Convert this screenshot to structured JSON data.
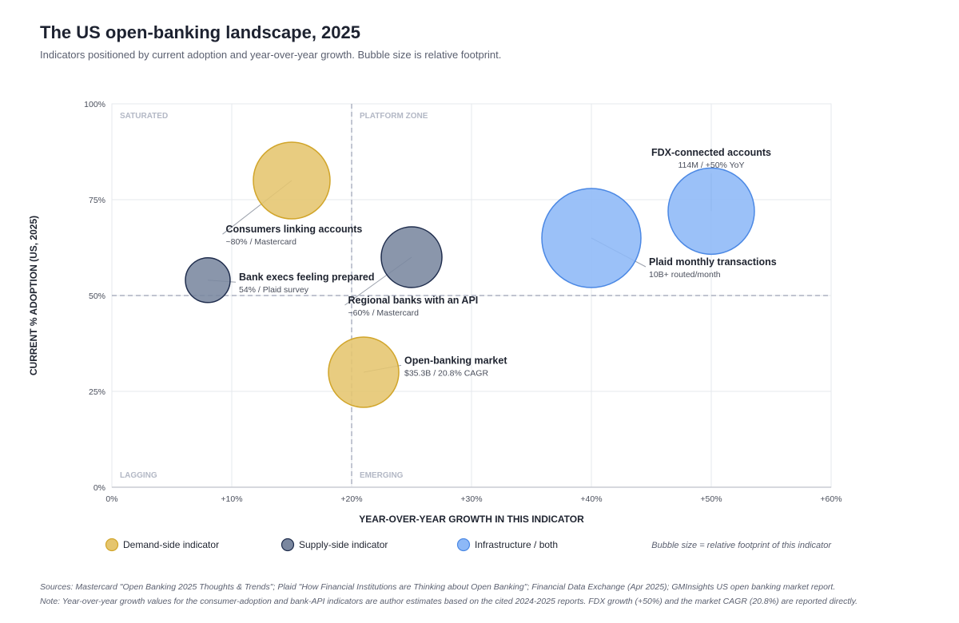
{
  "page": {
    "title": "The US open-banking landscape, 2025",
    "subtitle": "Indicators positioned by current adoption and year-over-year growth. Bubble size is relative footprint.",
    "sources": "Sources: Mastercard \"Open Banking 2025 Thoughts & Trends\"; Plaid \"How Financial Institutions are Thinking about Open Banking\"; Financial Data Exchange (Apr 2025); GMInsights US open banking market report.",
    "note": "Note: Year-over-year growth values for the consumer-adoption and bank-API indicators are author estimates based on the cited 2024-2025 reports. FDX growth (+50%) and the market CAGR (20.8%) are reported directly."
  },
  "colors": {
    "demand_fill": "#e5c56e",
    "demand_stroke": "#d1a52a",
    "supply_fill": "#7a879f",
    "supply_stroke": "#1f2d4d",
    "infra_fill": "#8db8f7",
    "infra_stroke": "#4b88e4",
    "grid": "#e6e8ec",
    "axis": "#c9ccd4",
    "divider": "#9aa1b3",
    "quadrant_label": "#b3b8c5"
  },
  "chart_data": {
    "type": "scatter",
    "xlabel": "YEAR-OVER-YEAR GROWTH IN THIS INDICATOR",
    "ylabel": "CURRENT % ADOPTION (US, 2025)",
    "xlim": [
      0,
      60
    ],
    "ylim": [
      0,
      100
    ],
    "x_ticks": [
      0,
      10,
      20,
      30,
      40,
      50,
      60
    ],
    "x_tick_labels": [
      "0%",
      "+10%",
      "+20%",
      "+30%",
      "+40%",
      "+50%",
      "+60%"
    ],
    "y_ticks": [
      0,
      25,
      50,
      75,
      100
    ],
    "y_tick_labels": [
      "0%",
      "25%",
      "50%",
      "75%",
      "100%"
    ],
    "grid": true,
    "dividers": {
      "x": 20,
      "y": 50
    },
    "quadrants": [
      {
        "label": "SATURATED",
        "corner": "top-left"
      },
      {
        "label": "PLATFORM ZONE",
        "corner": "top-right"
      },
      {
        "label": "LAGGING",
        "corner": "bottom-left"
      },
      {
        "label": "EMERGING",
        "corner": "bottom-right"
      }
    ],
    "legend": {
      "placement": "bottom",
      "items": [
        {
          "label": "Demand-side indicator",
          "group": "demand"
        },
        {
          "label": "Supply-side indicator",
          "group": "supply"
        },
        {
          "label": "Infrastructure / both",
          "group": "infra"
        }
      ],
      "note": "Bubble size = relative footprint of this indicator"
    },
    "points": [
      {
        "label": "Consumers linking accounts",
        "sub": "~80% / Mastercard",
        "x": 15,
        "y": 80,
        "size": 48,
        "group": "demand",
        "label_at": [
          9.5,
          66
        ]
      },
      {
        "label": "Bank execs feeling prepared",
        "sub": "54% / Plaid survey",
        "x": 8,
        "y": 54,
        "size": 28,
        "group": "supply",
        "label_at": [
          10.6,
          53.5
        ]
      },
      {
        "label": "Regional banks with an API",
        "sub": "~60% / Mastercard",
        "x": 25,
        "y": 60,
        "size": 38,
        "group": "supply",
        "label_at": [
          19.7,
          47.5
        ]
      },
      {
        "label": "Open-banking market",
        "sub": "$35.3B / 20.8% CAGR",
        "x": 21,
        "y": 30,
        "size": 44,
        "group": "demand",
        "label_at": [
          24.4,
          31.8
        ]
      },
      {
        "label": "Plaid monthly transactions",
        "sub": "10B+ routed/month",
        "x": 40,
        "y": 65,
        "size": 62,
        "group": "infra",
        "label_at": [
          44.8,
          57.5
        ]
      },
      {
        "label": "FDX-connected accounts",
        "sub": "114M / +50% YoY",
        "x": 50,
        "y": 72,
        "size": 54,
        "group": "infra",
        "label_at": [
          50,
          86
        ],
        "label_align": "middle"
      }
    ]
  }
}
